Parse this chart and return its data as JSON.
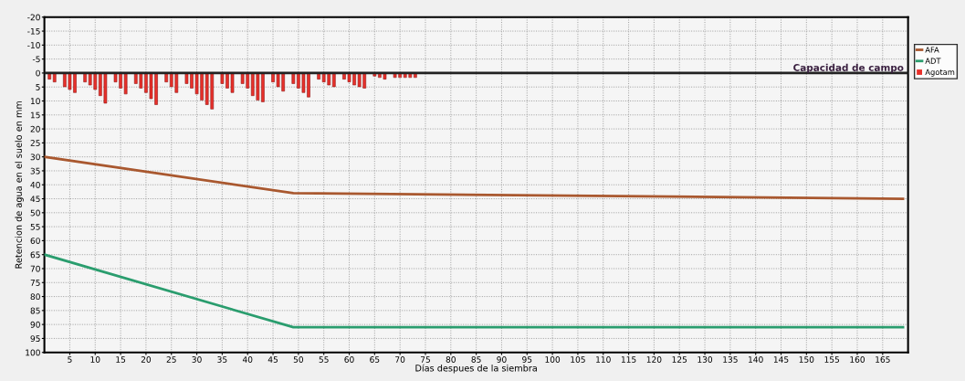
{
  "chart_data": {
    "type": "line",
    "xlabel": "Días despues de la siembra",
    "ylabel": "Retencion de agua en el suelo en mm",
    "xlim": [
      0,
      170
    ],
    "xticks": [
      5,
      10,
      15,
      20,
      25,
      30,
      35,
      40,
      45,
      50,
      55,
      60,
      65,
      70,
      75,
      80,
      85,
      90,
      95,
      100,
      105,
      110,
      115,
      120,
      125,
      130,
      135,
      140,
      145,
      150,
      155,
      160,
      165
    ],
    "ylim": [
      100,
      -20
    ],
    "yticks": [
      -20,
      -15,
      -10,
      -5,
      0,
      5,
      10,
      15,
      20,
      25,
      30,
      35,
      40,
      45,
      50,
      55,
      60,
      65,
      70,
      75,
      80,
      85,
      90,
      95,
      100
    ],
    "grid": true,
    "legend": "top right",
    "ref_lines": [
      {
        "axis": "y",
        "value": 0,
        "label": "Capacidad de campo",
        "color": "#222222"
      }
    ],
    "series": [
      {
        "name": "AFA",
        "color": "#a9582f",
        "x": [
          0,
          49,
          169
        ],
        "values": [
          30,
          43,
          45
        ]
      },
      {
        "name": "ADT",
        "color": "#2a9d6e",
        "x": [
          0,
          49,
          169
        ],
        "values": [
          65,
          91,
          91
        ]
      },
      {
        "name": "Agotam",
        "type": "bar",
        "color": "#e8302a",
        "x": [
          1,
          2,
          4,
          5,
          6,
          8,
          9,
          10,
          11,
          12,
          14,
          15,
          16,
          18,
          19,
          20,
          21,
          22,
          24,
          25,
          26,
          28,
          29,
          30,
          31,
          32,
          33,
          35,
          36,
          37,
          39,
          40,
          41,
          42,
          43,
          45,
          46,
          47,
          49,
          50,
          51,
          52,
          54,
          55,
          56,
          57,
          59,
          60,
          61,
          62,
          63,
          65,
          66,
          67,
          69,
          70,
          71,
          72,
          73
        ],
        "values": [
          2.2,
          3.2,
          4.9,
          5.9,
          7.0,
          3.2,
          4.3,
          5.9,
          8.1,
          10.8,
          3.2,
          5.4,
          7.5,
          3.8,
          5.4,
          7.0,
          9.2,
          11.3,
          3.2,
          4.9,
          7.0,
          3.8,
          5.4,
          7.5,
          9.7,
          11.3,
          12.9,
          3.8,
          5.4,
          7.0,
          3.8,
          5.4,
          8.1,
          9.7,
          10.3,
          3.2,
          4.9,
          6.5,
          3.8,
          5.4,
          7.0,
          8.6,
          2.2,
          3.2,
          4.3,
          4.9,
          2.2,
          3.2,
          4.3,
          4.9,
          5.4,
          1.1,
          1.6,
          2.2,
          1.6,
          1.6,
          1.6,
          1.6,
          1.6
        ]
      }
    ]
  }
}
